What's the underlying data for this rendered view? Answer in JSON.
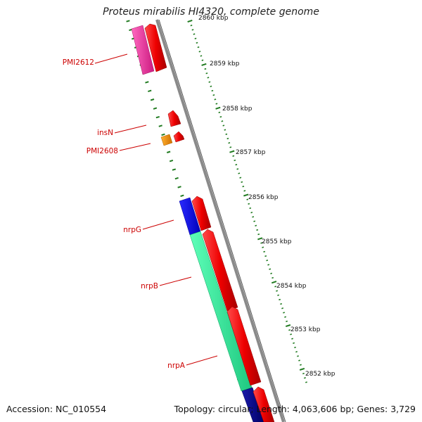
{
  "title": "Proteus mirabilis HI4320, complete genome",
  "footer": {
    "accession": "Accession: NC_010554",
    "summary": "Topology: circular; Length: 4,063,606 bp; Genes: 3,729"
  },
  "ticks": [
    {
      "label": "2860 kbp"
    },
    {
      "label": "2859 kbp"
    },
    {
      "label": "2858 kbp"
    },
    {
      "label": "2857 kbp"
    },
    {
      "label": "2856 kbp"
    },
    {
      "label": "2855 kbp"
    },
    {
      "label": "2854 kbp"
    },
    {
      "label": "2853 kbp"
    },
    {
      "label": "2852 kbp"
    }
  ],
  "gene_labels": [
    {
      "text": "PMI2612"
    },
    {
      "text": "insN"
    },
    {
      "text": "PMI2608"
    },
    {
      "text": "nrpG"
    },
    {
      "text": "nrpB"
    },
    {
      "text": "nrpA"
    }
  ],
  "colors": {
    "backbone": "#8a8a8a",
    "tick_mark": "#1f7a1f",
    "gene_red": "#ee0000",
    "gene_pink": "#ee2a9a",
    "gene_blue": "#0000ee",
    "gene_green": "#2ee89a",
    "gene_orange": "#f08a00",
    "gene_navy": "#000088",
    "label_red": "#cc0000"
  }
}
